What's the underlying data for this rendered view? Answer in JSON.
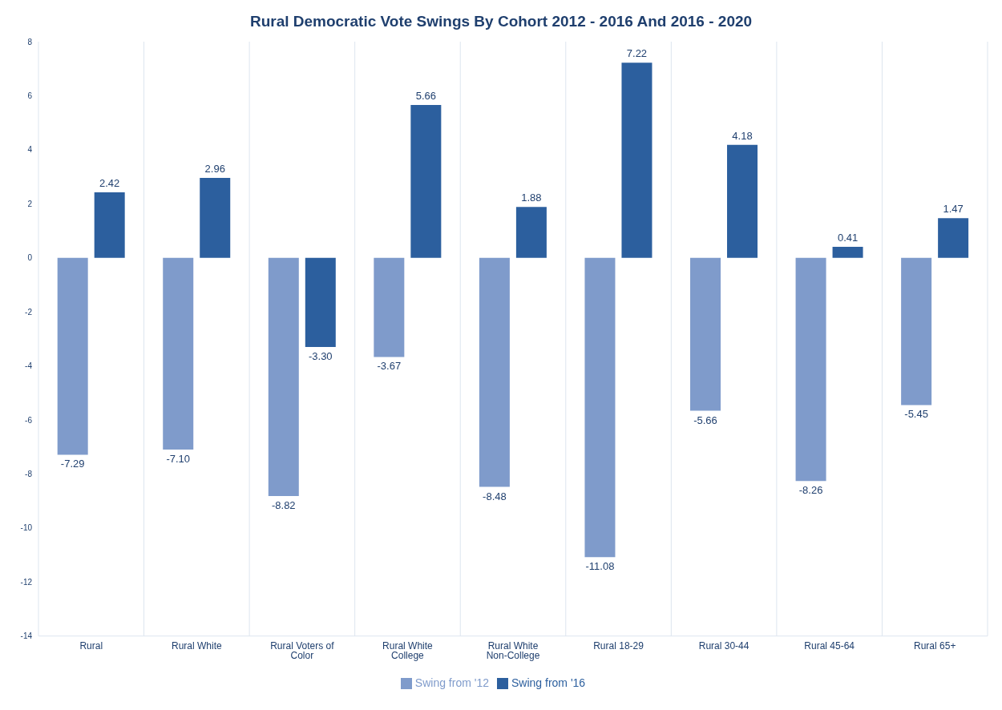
{
  "chart_data": {
    "type": "bar",
    "title": "Rural Democratic Vote Swings By Cohort 2012 - 2016 And 2016 - 2020",
    "categories": [
      "Rural",
      "Rural White",
      "Rural Voters of Color",
      "Rural White College",
      "Rural White Non-College",
      "Rural 18-29",
      "Rural 30-44",
      "Rural 45-64",
      "Rural 65+"
    ],
    "series": [
      {
        "name": "Swing from '12",
        "color": "#7f9bcb",
        "values": [
          -7.29,
          -7.1,
          -8.82,
          -3.67,
          -8.48,
          -11.08,
          -5.66,
          -8.26,
          -5.45
        ],
        "value_labels": [
          "-7.29",
          "-7.10",
          "-8.82",
          "-3.67",
          "-8.48",
          "-11.08",
          "-5.66",
          "-8.26",
          "-5.45"
        ]
      },
      {
        "name": "Swing from '16",
        "color": "#2c5f9e",
        "values": [
          2.42,
          2.96,
          -3.3,
          5.66,
          1.88,
          7.22,
          4.18,
          0.41,
          1.47
        ],
        "value_labels": [
          "2.42",
          "2.96",
          "-3.30",
          "5.66",
          "1.88",
          "7.22",
          "4.18",
          "0.41",
          "1.47"
        ]
      }
    ],
    "ylim": [
      -14,
      8
    ],
    "yticks": [
      -14,
      -12,
      -10,
      -8,
      -6,
      -4,
      -2,
      0,
      2,
      4,
      6,
      8
    ],
    "grid": "x",
    "legend": "bottom"
  }
}
